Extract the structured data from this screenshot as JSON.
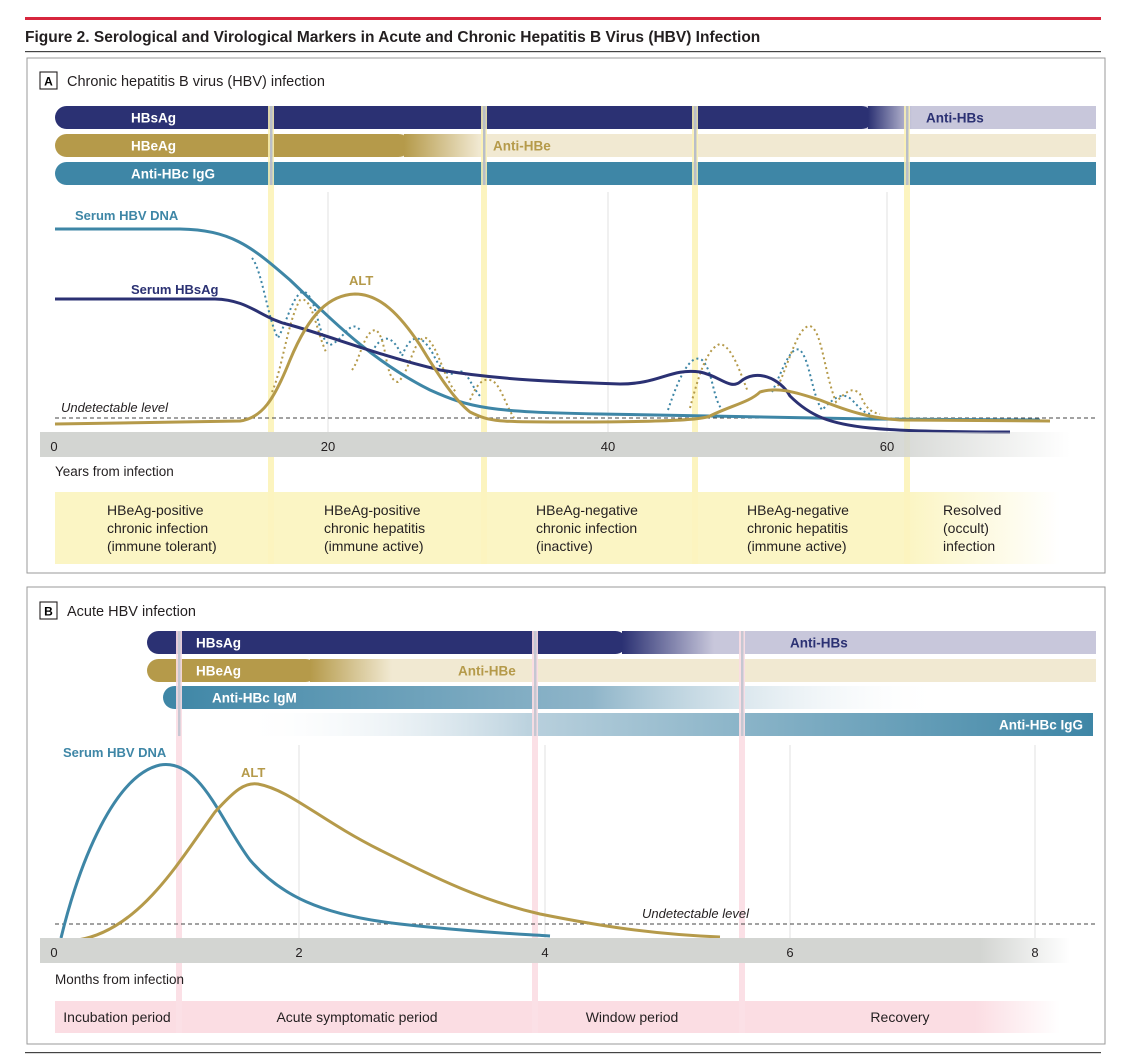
{
  "figure_title": "Figure 2. Serological and Virological Markers in Acute and Chronic Hepatitis B Virus (HBV) Infection",
  "colors": {
    "accent_red": "#d7263d",
    "navy": "#2b3173",
    "gold": "#b59a4a",
    "teal": "#3e86a6",
    "anti_hbs": "#c8c7db",
    "anti_hbe": "#f1e9d2",
    "phase_yellow": "#fbf5c4",
    "phase_pink": "#fbdde3",
    "axis_gray": "#d3d5d2"
  },
  "panel_a": {
    "letter": "A",
    "title": "Chronic hepatitis B virus (HBV) infection",
    "bars": {
      "hbsag": "HBsAg",
      "anti_hbs": "Anti-HBs",
      "hbeag": "HBeAg",
      "anti_hbe": "Anti-HBe",
      "anti_hbc_igg": "Anti-HBc IgG"
    },
    "curve_labels": {
      "serum_dna": "Serum HBV DNA",
      "serum_hbsag": "Serum HBsAg",
      "alt": "ALT",
      "undetectable": "Undetectable level"
    },
    "x_axis": {
      "label": "Years from infection",
      "ticks": [
        "0",
        "20",
        "40",
        "60"
      ]
    },
    "phases": [
      [
        "HBeAg-positive",
        "chronic infection",
        "(immune tolerant)"
      ],
      [
        "HBeAg-positive",
        "chronic hepatitis",
        "(immune active)"
      ],
      [
        "HBeAg-negative",
        "chronic infection",
        "(inactive)"
      ],
      [
        "HBeAg-negative",
        "chronic hepatitis",
        "(immune active)"
      ],
      [
        "Resolved",
        "(occult)",
        "infection"
      ]
    ]
  },
  "panel_b": {
    "letter": "B",
    "title": "Acute HBV infection",
    "bars": {
      "hbsag": "HBsAg",
      "anti_hbs": "Anti-HBs",
      "hbeag": "HBeAg",
      "anti_hbe": "Anti-HBe",
      "anti_hbc_igm": "Anti-HBc IgM",
      "anti_hbc_igg": "Anti-HBc IgG"
    },
    "curve_labels": {
      "serum_dna": "Serum HBV DNA",
      "alt": "ALT",
      "undetectable": "Undetectable level"
    },
    "x_axis": {
      "label": "Months from infection",
      "ticks": [
        "0",
        "2",
        "4",
        "6",
        "8"
      ]
    },
    "phases": [
      "Incubation period",
      "Acute symptomatic period",
      "Window period",
      "Recovery"
    ]
  }
}
